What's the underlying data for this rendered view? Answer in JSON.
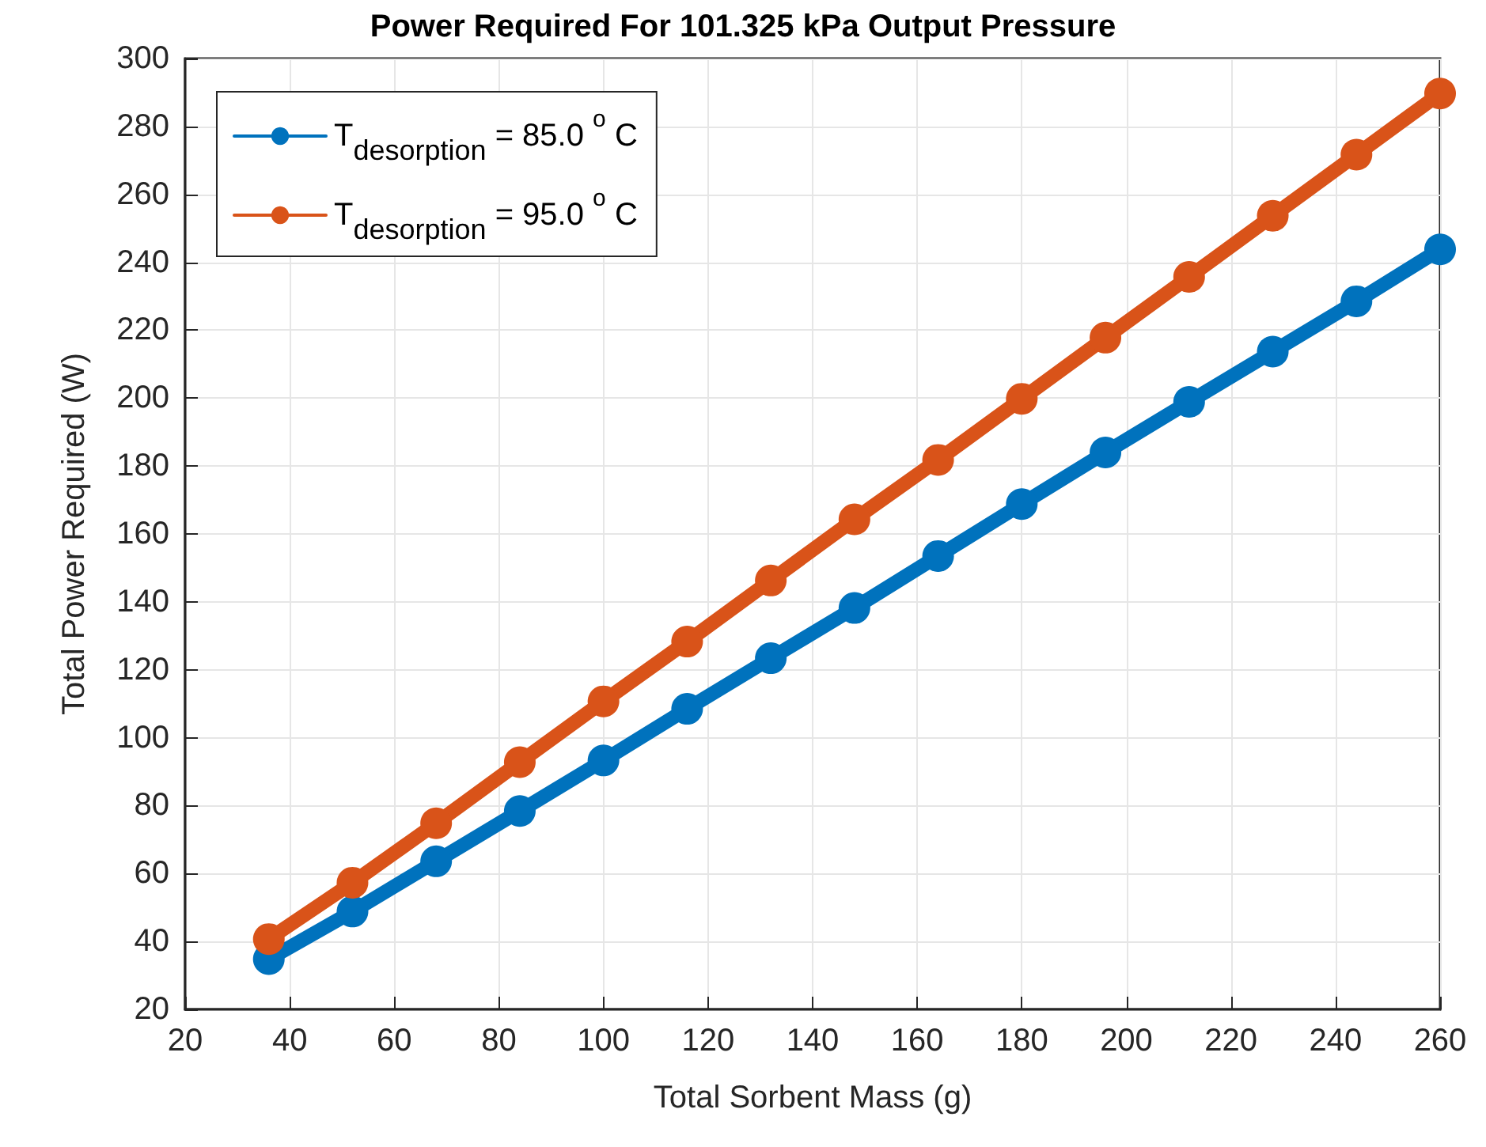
{
  "chart_data": {
    "type": "line",
    "title": "Power Required For 101.325 kPa Output Pressure",
    "xlabel": "Total Sorbent Mass (g)",
    "ylabel": "Total Power Required (W)",
    "x": [
      36,
      52,
      68,
      84,
      100,
      116,
      132,
      148,
      164,
      180,
      196,
      212,
      228,
      244,
      260
    ],
    "series": [
      {
        "name": "T$_{desorption}$ = 85.0 $^{o}$ C",
        "color": "#0072bd",
        "values": [
          34.8,
          48.8,
          63.6,
          78.4,
          93.3,
          108.5,
          123.4,
          138.2,
          153.5,
          168.8,
          184,
          198.9,
          213.7,
          228.5,
          243.8
        ]
      },
      {
        "name": "T$_{desorption}$ = 95.0 $^{o}$ C",
        "color": "#d95319",
        "values": [
          40.7,
          57.3,
          74.8,
          92.8,
          110.7,
          128.3,
          146.3,
          164.3,
          181.8,
          199.8,
          217.8,
          235.7,
          253.7,
          271.7,
          289.7
        ]
      }
    ],
    "xlim": [
      20,
      260
    ],
    "xticks": [
      20,
      40,
      60,
      80,
      100,
      120,
      140,
      160,
      180,
      200,
      220,
      240,
      260
    ],
    "ylim": [
      20,
      300
    ],
    "yticks": [
      20,
      40,
      60,
      80,
      100,
      120,
      140,
      160,
      180,
      200,
      220,
      240,
      260,
      280,
      300
    ],
    "grid": true,
    "legend": "top left",
    "marker": "circle",
    "line_style": "solid"
  }
}
